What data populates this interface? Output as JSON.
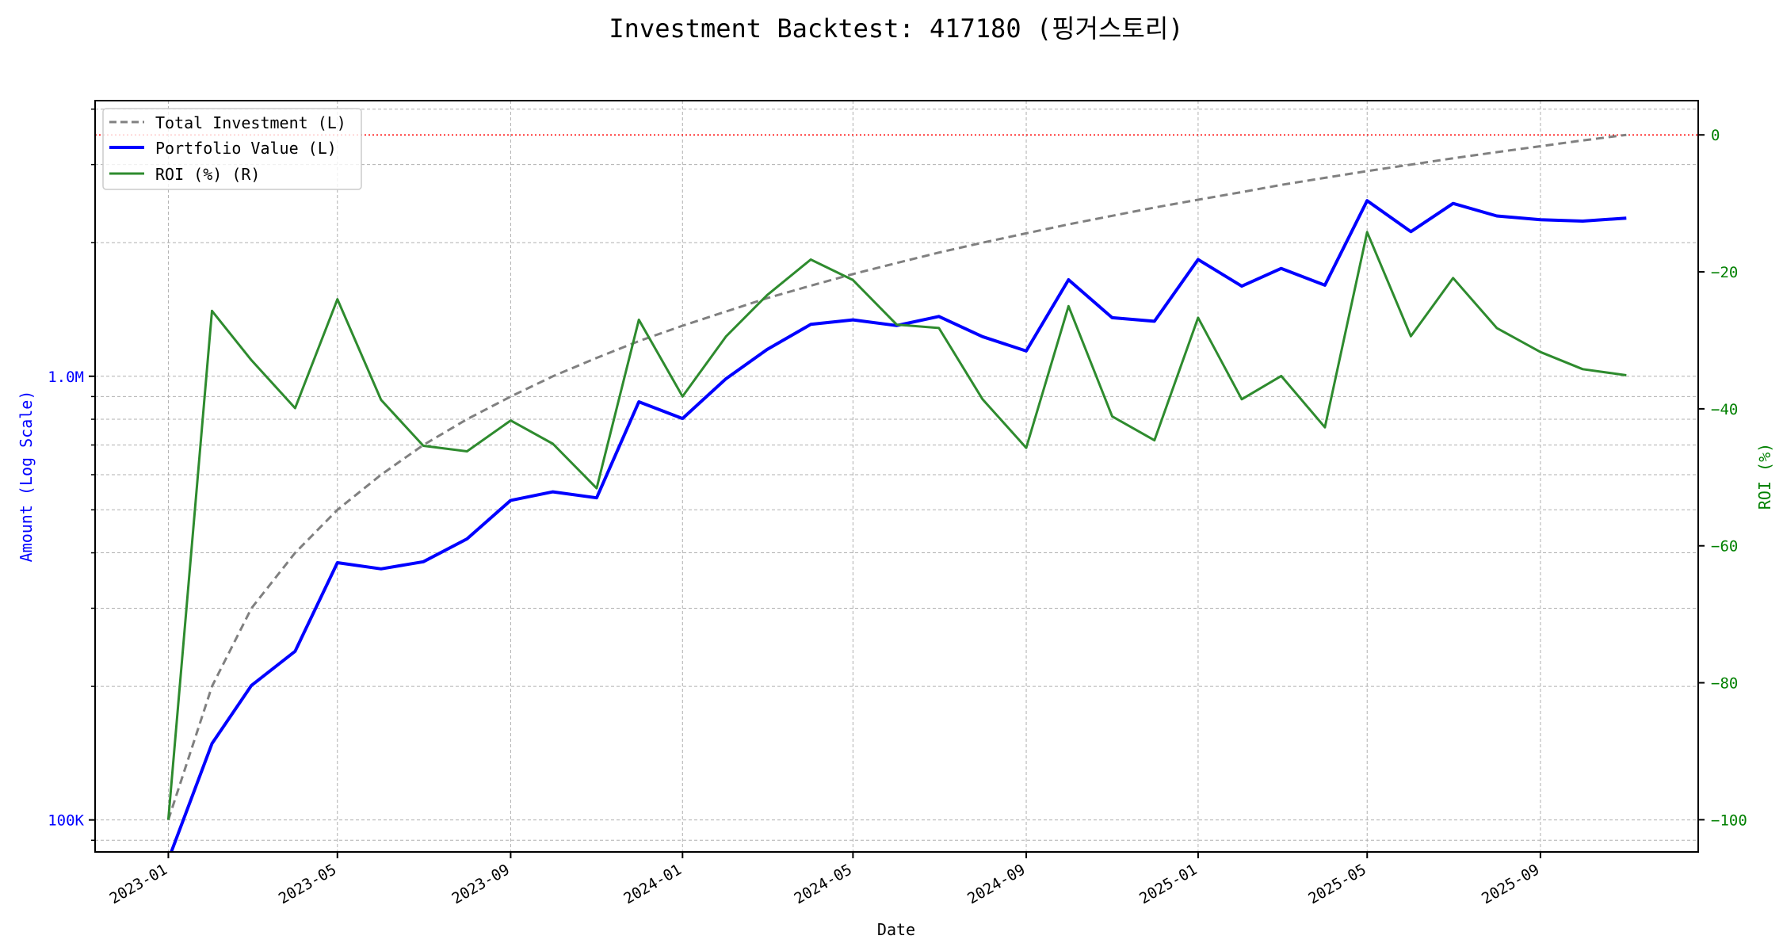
{
  "chart_data": {
    "type": "line",
    "title": "Investment Backtest: 417180 (핑거스토리)",
    "xlabel": "Date",
    "ylabel_left": "Amount (Log Scale)",
    "ylabel_right": "ROI (%)",
    "y_left_scale": "log",
    "y_left_range": [
      84700,
      4180000
    ],
    "y_right_range": [
      -104.7,
      5.0
    ],
    "x_range": [
      "2022-11-10",
      "2025-12-22"
    ],
    "grid": true,
    "legend_position": "upper-left",
    "x_tick_labels": [
      "2023-01",
      "2023-05",
      "2023-09",
      "2024-01",
      "2024-05",
      "2024-09",
      "2025-01",
      "2025-05",
      "2025-09"
    ],
    "y_left_tick_labels": [
      {
        "value": 100000,
        "label": "100K"
      },
      {
        "value": 1000000,
        "label": "1.0M"
      }
    ],
    "y_right_tick_labels": [
      {
        "value": 0,
        "label": "0"
      },
      {
        "value": -20,
        "label": "−20"
      },
      {
        "value": -40,
        "label": "−40"
      },
      {
        "value": -60,
        "label": "−60"
      },
      {
        "value": -80,
        "label": "−80"
      },
      {
        "value": -100,
        "label": "−100"
      }
    ],
    "reference_line": {
      "axis": "right",
      "value": 0,
      "color": "#ff0000",
      "style": "dotted"
    },
    "x": [
      "2023-01",
      "2023-02",
      "2023-03",
      "2023-04",
      "2023-05",
      "2023-06",
      "2023-07",
      "2023-08",
      "2023-09",
      "2023-10",
      "2023-11",
      "2023-12",
      "2024-01",
      "2024-02",
      "2024-03",
      "2024-04",
      "2024-05",
      "2024-06",
      "2024-07",
      "2024-08",
      "2024-09",
      "2024-10",
      "2024-11",
      "2024-12",
      "2025-01",
      "2025-02",
      "2025-03",
      "2025-04",
      "2025-05",
      "2025-06",
      "2025-07",
      "2025-08",
      "2025-09",
      "2025-10",
      "2025-11"
    ],
    "series": [
      {
        "name": "Total Investment (L)",
        "axis": "left",
        "color": "#808080",
        "style": "dashed",
        "values": [
          100000,
          200000,
          300000,
          400000,
          500000,
          600000,
          700000,
          800000,
          900000,
          1000000,
          1100000,
          1200000,
          1300000,
          1400000,
          1500000,
          1600000,
          1700000,
          1800000,
          1900000,
          2000000,
          2100000,
          2200000,
          2300000,
          2400000,
          2500000,
          2600000,
          2700000,
          2800000,
          2900000,
          3000000,
          3100000,
          3200000,
          3300000,
          3400000,
          3500000
        ]
      },
      {
        "name": "Portfolio Value (L)",
        "axis": "left",
        "color": "#0000ff",
        "style": "solid",
        "values": [
          0,
          148600,
          201000,
          240000,
          380000,
          368000,
          382000,
          430000,
          525000,
          549000,
          532000,
          876000,
          803000,
          988000,
          1149000,
          1309000,
          1340000,
          1301000,
          1364000,
          1228000,
          1140000,
          1650000,
          1355000,
          1330000,
          1833000,
          1596000,
          1750000,
          1604000,
          2488000,
          2118000,
          2452000,
          2298000,
          2254000,
          2237000,
          2272000
        ]
      },
      {
        "name": "ROI (%) (R)",
        "axis": "right",
        "color": "#2e8b2e",
        "style": "solid",
        "values": [
          -100,
          -25.7,
          -32.9,
          -39.9,
          -24.0,
          -38.7,
          -45.4,
          -46.2,
          -41.7,
          -45.1,
          -51.6,
          -27.0,
          -38.2,
          -29.4,
          -23.4,
          -18.2,
          -21.2,
          -27.7,
          -28.2,
          -38.6,
          -45.7,
          -25.0,
          -41.1,
          -44.6,
          -26.7,
          -38.6,
          -35.2,
          -42.7,
          -14.2,
          -29.4,
          -20.9,
          -28.2,
          -31.7,
          -34.2,
          -35.1
        ]
      }
    ]
  }
}
